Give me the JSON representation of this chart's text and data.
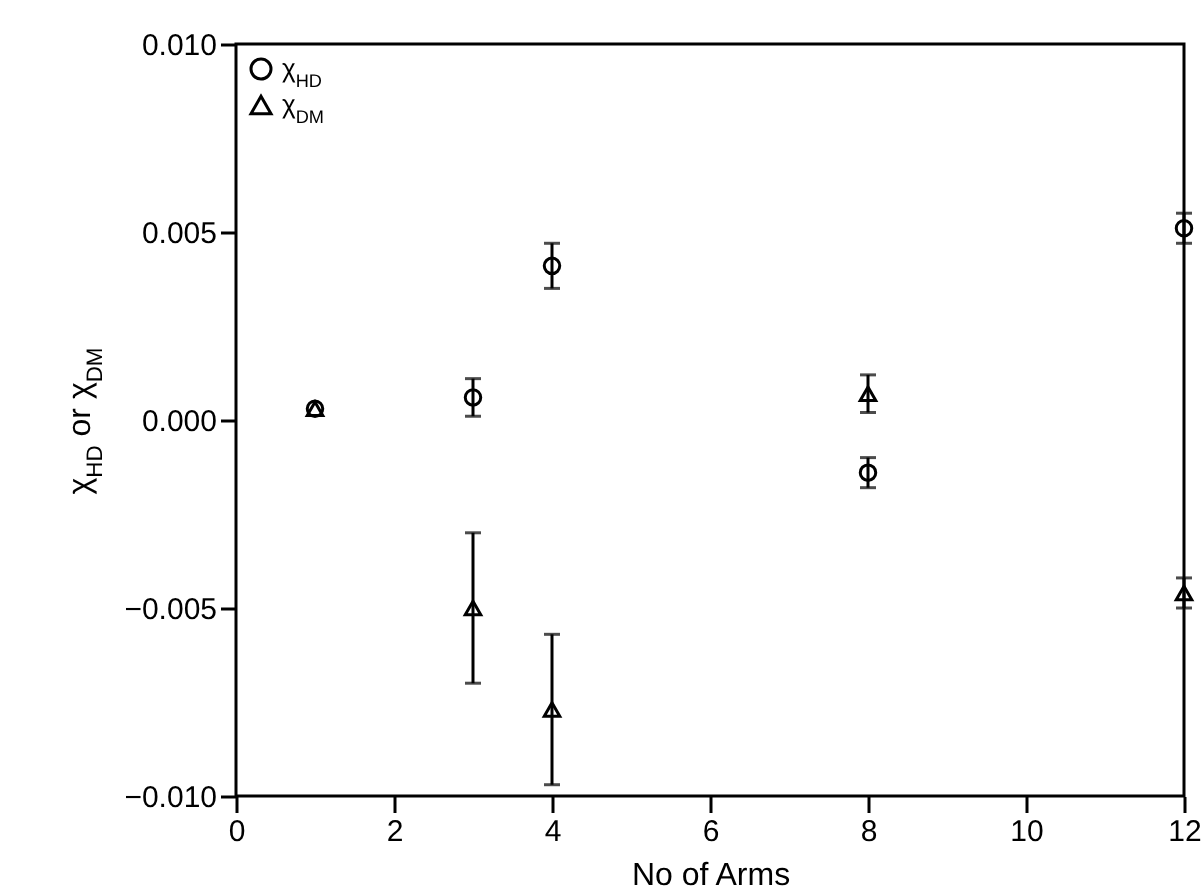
{
  "chart_data": {
    "type": "scatter",
    "xlabel": "No of Arms",
    "ylabel": "χ$_{HD}$ or χ$_{DM}$",
    "xlim": [
      0,
      12
    ],
    "xticks": [
      0,
      2,
      4,
      6,
      8,
      10,
      12
    ],
    "ylim": [
      -0.01,
      0.01
    ],
    "yticks": [
      {
        "value": -0.01,
        "label": "−0.010"
      },
      {
        "value": -0.005,
        "label": "−0.005"
      },
      {
        "value": 0,
        "label": "0.000"
      },
      {
        "value": 0.005,
        "label": "0.005"
      },
      {
        "value": 0.01,
        "label": "0.010"
      }
    ],
    "legend": "top left",
    "grid": false,
    "series": [
      {
        "name": "χ$_{HD}$",
        "color": "#000000",
        "marker": "circle",
        "x": [
          1,
          3,
          4,
          8,
          12
        ],
        "values": [
          0.0003,
          0.0006,
          0.0041,
          -0.0014,
          0.0051
        ],
        "errors": [
          null,
          0.0005,
          0.0006,
          0.0004,
          0.0004
        ]
      },
      {
        "name": "χ$_{DM}$",
        "color": "#000000",
        "marker": "triangle",
        "x": [
          1,
          3,
          4,
          8,
          12
        ],
        "values": [
          0.0003,
          -0.005,
          -0.0077,
          0.0007,
          -0.0046
        ],
        "errors": [
          null,
          0.002,
          0.002,
          0.0005,
          0.0004
        ]
      }
    ]
  }
}
